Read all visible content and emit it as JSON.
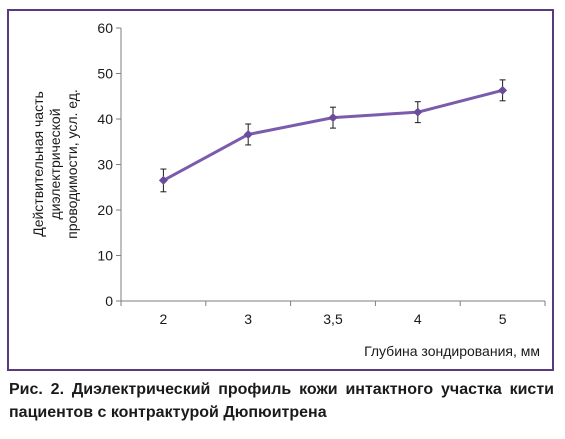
{
  "chart_data": {
    "type": "line",
    "categories": [
      "2",
      "3",
      "3,5",
      "4",
      "5"
    ],
    "series": [
      {
        "values": [
          26.5,
          36.6,
          40.3,
          41.5,
          46.3
        ],
        "error": [
          2.5,
          2.3,
          2.3,
          2.3,
          2.3
        ]
      }
    ],
    "y_ticks": [
      "0",
      "10",
      "20",
      "30",
      "40",
      "50",
      "60"
    ],
    "ylim": [
      0,
      60
    ],
    "ylabel_lines": [
      "Действительная часть",
      "диэлектрической",
      "проводимости, усл. ед."
    ],
    "xlabel": "Глубина зондирования, мм",
    "grid": false,
    "colors": {
      "line": "#7b5bab",
      "marker": "#6a4c9c",
      "error": "#1a1a1a",
      "frame": "#5a3a7e"
    }
  },
  "caption": "Рис. 2. Диэлектрический профиль кожи интактного участка кисти пациентов с контрактурой Дюпюитрена"
}
